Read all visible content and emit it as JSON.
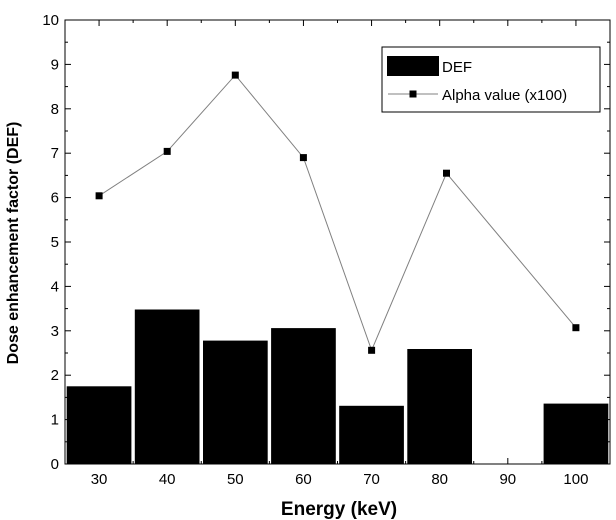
{
  "chart_data": {
    "type": "bar",
    "xlabel": "Energy (keV)",
    "ylabel": "Dose enhancement factor (DEF)",
    "xlim": [
      25,
      105
    ],
    "ylim": [
      0,
      10
    ],
    "x_ticks": [
      30,
      40,
      50,
      60,
      70,
      80,
      90,
      100
    ],
    "y_ticks": [
      0,
      1,
      2,
      3,
      4,
      5,
      6,
      7,
      8,
      9,
      10
    ],
    "grid": false,
    "legend_position": "top-right",
    "bar_width": 9.5,
    "series": [
      {
        "name": "DEF",
        "type": "bar",
        "color": "#000000",
        "x": [
          30,
          40,
          50,
          60,
          70,
          80,
          100
        ],
        "values": [
          1.75,
          3.48,
          2.78,
          3.06,
          1.31,
          2.59,
          1.36
        ]
      },
      {
        "name": "Alpha value (x100)",
        "type": "line",
        "marker": "square",
        "line_color": "#808080",
        "marker_color": "#000000",
        "x": [
          30,
          40,
          50,
          60,
          70,
          81,
          100
        ],
        "values": [
          6.04,
          7.04,
          8.76,
          6.9,
          2.56,
          6.55,
          3.07
        ]
      }
    ]
  }
}
